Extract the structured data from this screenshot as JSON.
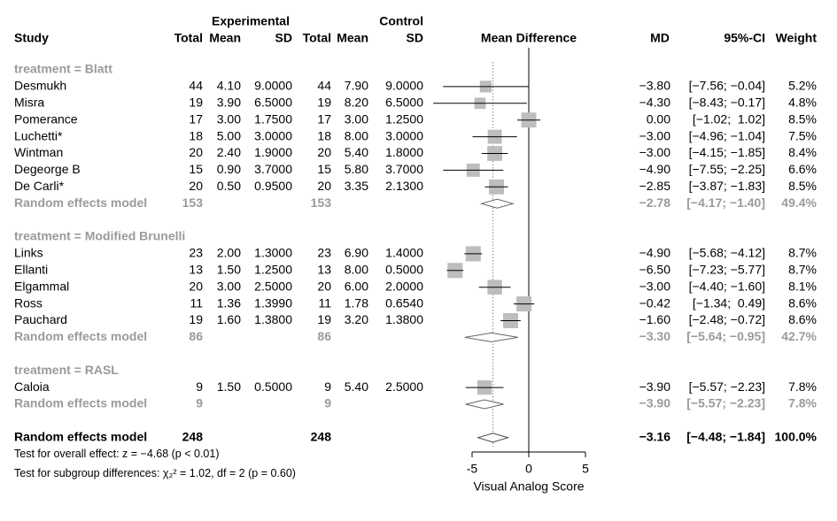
{
  "chart_data": {
    "type": "forest",
    "header": {
      "experimental": "Experimental",
      "control": "Control",
      "columns": [
        "Study",
        "Total",
        "Mean",
        "SD",
        "Total",
        "Mean",
        "SD",
        "Mean Difference",
        "MD",
        "95%-CI",
        "Weight"
      ]
    },
    "xlim": [
      -5,
      5
    ],
    "xticks": [
      -5,
      0,
      5
    ],
    "xlabel": "Visual Analog Score",
    "null_line": 0,
    "groups": [
      {
        "label": "treatment = Blatt",
        "studies": [
          {
            "name": "Desmukh",
            "cells": [
              "44",
              "4.10",
              "9.0000",
              "44",
              "7.90",
              "9.0000"
            ],
            "md": -3.8,
            "ci": [
              -7.56,
              -0.04
            ],
            "weight": 5.2,
            "md_label": "−3.80",
            "ci_label": "[−7.56; −0.04]",
            "weight_label": "5.2%"
          },
          {
            "name": "Misra",
            "cells": [
              "19",
              "3.90",
              "6.5000",
              "19",
              "8.20",
              "6.5000"
            ],
            "md": -4.3,
            "ci": [
              -8.43,
              -0.17
            ],
            "weight": 4.8,
            "md_label": "−4.30",
            "ci_label": "[−8.43; −0.17]",
            "weight_label": "4.8%"
          },
          {
            "name": "Pomerance",
            "cells": [
              "17",
              "3.00",
              "1.7500",
              "17",
              "3.00",
              "1.2500"
            ],
            "md": 0,
            "ci": [
              -1.02,
              1.02
            ],
            "weight": 8.5,
            "md_label": "0.00",
            "ci_label": "[−1.02;  1.02]",
            "weight_label": "8.5%"
          },
          {
            "name": "Luchetti*",
            "cells": [
              "18",
              "5.00",
              "3.0000",
              "18",
              "8.00",
              "3.0000"
            ],
            "md": -3,
            "ci": [
              -4.96,
              -1.04
            ],
            "weight": 7.5,
            "md_label": "−3.00",
            "ci_label": "[−4.96; −1.04]",
            "weight_label": "7.5%"
          },
          {
            "name": "Wintman",
            "cells": [
              "20",
              "2.40",
              "1.9000",
              "20",
              "5.40",
              "1.8000"
            ],
            "md": -3,
            "ci": [
              -4.15,
              -1.85
            ],
            "weight": 8.4,
            "md_label": "−3.00",
            "ci_label": "[−4.15; −1.85]",
            "weight_label": "8.4%"
          },
          {
            "name": "Degeorge B",
            "cells": [
              "15",
              "0.90",
              "3.7000",
              "15",
              "5.80",
              "3.7000"
            ],
            "md": -4.9,
            "ci": [
              -7.55,
              -2.25
            ],
            "weight": 6.6,
            "md_label": "−4.90",
            "ci_label": "[−7.55; −2.25]",
            "weight_label": "6.6%"
          },
          {
            "name": "De Carli*",
            "cells": [
              "20",
              "0.50",
              "0.9500",
              "20",
              "3.35",
              "2.1300"
            ],
            "md": -2.85,
            "ci": [
              -3.87,
              -1.83
            ],
            "weight": 8.5,
            "md_label": "−2.85",
            "ci_label": "[−3.87; −1.83]",
            "weight_label": "8.5%"
          }
        ],
        "model": {
          "name": "Random effects model",
          "totals": [
            "153",
            "153"
          ],
          "md": -2.78,
          "ci": [
            -4.17,
            -1.4
          ],
          "md_label": "−2.78",
          "ci_label": "[−4.17; −1.40]",
          "weight_label": "49.4%"
        }
      },
      {
        "label": "treatment = Modified Brunelli",
        "studies": [
          {
            "name": "Links",
            "cells": [
              "23",
              "2.00",
              "1.3000",
              "23",
              "6.90",
              "1.4000"
            ],
            "md": -4.9,
            "ci": [
              -5.68,
              -4.12
            ],
            "weight": 8.7,
            "md_label": "−4.90",
            "ci_label": "[−5.68; −4.12]",
            "weight_label": "8.7%"
          },
          {
            "name": "Ellanti",
            "cells": [
              "13",
              "1.50",
              "1.2500",
              "13",
              "8.00",
              "0.5000"
            ],
            "md": -6.5,
            "ci": [
              -7.23,
              -5.77
            ],
            "weight": 8.7,
            "md_label": "−6.50",
            "ci_label": "[−7.23; −5.77]",
            "weight_label": "8.7%"
          },
          {
            "name": "Elgammal",
            "cells": [
              "20",
              "3.00",
              "2.5000",
              "20",
              "6.00",
              "2.0000"
            ],
            "md": -3,
            "ci": [
              -4.4,
              -1.6
            ],
            "weight": 8.1,
            "md_label": "−3.00",
            "ci_label": "[−4.40; −1.60]",
            "weight_label": "8.1%"
          },
          {
            "name": "Ross",
            "cells": [
              "11",
              "1.36",
              "1.3990",
              "11",
              "1.78",
              "0.6540"
            ],
            "md": -0.42,
            "ci": [
              -1.34,
              0.49
            ],
            "weight": 8.6,
            "md_label": "−0.42",
            "ci_label": "[−1.34;  0.49]",
            "weight_label": "8.6%"
          },
          {
            "name": "Pauchard",
            "cells": [
              "19",
              "1.60",
              "1.3800",
              "19",
              "3.20",
              "1.3800"
            ],
            "md": -1.6,
            "ci": [
              -2.48,
              -0.72
            ],
            "weight": 8.6,
            "md_label": "−1.60",
            "ci_label": "[−2.48; −0.72]",
            "weight_label": "8.6%"
          }
        ],
        "model": {
          "name": "Random effects model",
          "totals": [
            "86",
            "86"
          ],
          "md": -3.3,
          "ci": [
            -5.64,
            -0.95
          ],
          "md_label": "−3.30",
          "ci_label": "[−5.64; −0.95]",
          "weight_label": "42.7%"
        }
      },
      {
        "label": "treatment = RASL",
        "studies": [
          {
            "name": "Caloia",
            "cells": [
              "9",
              "1.50",
              "0.5000",
              "9",
              "5.40",
              "2.5000"
            ],
            "md": -3.9,
            "ci": [
              -5.57,
              -2.23
            ],
            "weight": 7.8,
            "md_label": "−3.90",
            "ci_label": "[−5.57; −2.23]",
            "weight_label": "7.8%"
          }
        ],
        "model": {
          "name": "Random effects model",
          "totals": [
            "9",
            "9"
          ],
          "md": -3.9,
          "ci": [
            -5.57,
            -2.23
          ],
          "md_label": "−3.90",
          "ci_label": "[−5.57; −2.23]",
          "weight_label": "7.8%"
        }
      }
    ],
    "overall": {
      "name": "Random effects model",
      "totals": [
        "248",
        "248"
      ],
      "md": -3.16,
      "ci": [
        -4.48,
        -1.84
      ],
      "md_label": "−3.16",
      "ci_label": "[−4.48; −1.84]",
      "weight_label": "100.0%"
    },
    "tests": [
      "Test for overall effect: z = −4.68 (p < 0.01)",
      "Test for subgroup differences: χ₂² = 1.02, df = 2 (p = 0.60)"
    ]
  }
}
